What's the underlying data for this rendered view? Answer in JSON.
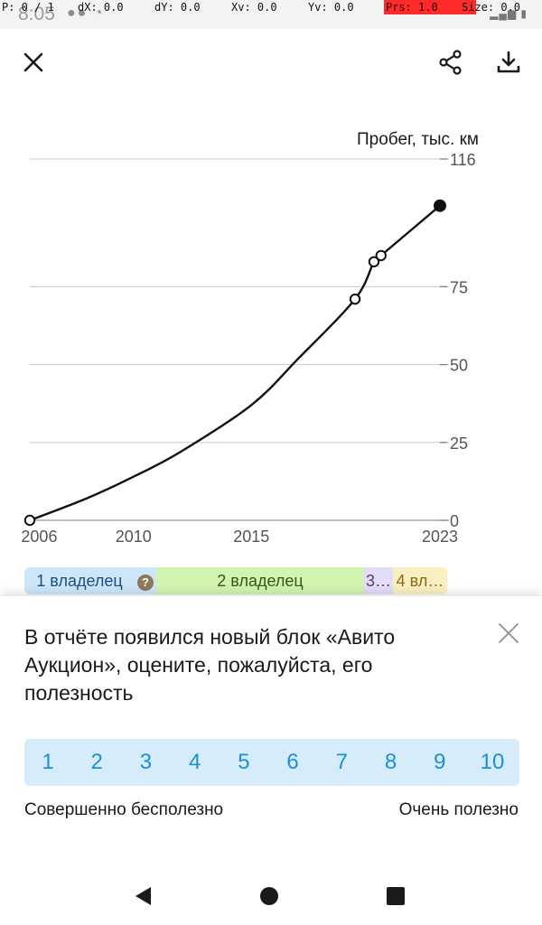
{
  "status": {
    "time": "8:05"
  },
  "debug": {
    "p": "P: 0 / 1",
    "dx": "dX: 0.0",
    "dy": "dY: 0.0",
    "xv": "Xv: 0.0",
    "yv": "Yv: 0.0",
    "prs": "Prs: 1.0",
    "size": "Size: 0.0"
  },
  "toolbar": {
    "close_icon": "close-icon",
    "share_icon": "share-icon",
    "download_icon": "download-icon"
  },
  "chart_data": {
    "type": "line",
    "title": "",
    "ylabel": "Пробег, тыс. км",
    "xlabel": "",
    "xlim": [
      2005.6,
      2023.0
    ],
    "ylim": [
      0,
      116
    ],
    "x_ticks": [
      "2006",
      "2010",
      "2015",
      "2023"
    ],
    "x_tick_values": [
      2006,
      2010,
      2015,
      2023
    ],
    "y_ticks": [
      0,
      25,
      50,
      75,
      116
    ],
    "grid": true,
    "series": [
      {
        "values": [
          {
            "x": 2005.6,
            "y": 0
          },
          {
            "x": 2008.0,
            "y": 7
          },
          {
            "x": 2010.0,
            "y": 14
          },
          {
            "x": 2012.0,
            "y": 22
          },
          {
            "x": 2015.0,
            "y": 37
          },
          {
            "x": 2017.0,
            "y": 52
          },
          {
            "x": 2019.4,
            "y": 71
          },
          {
            "x": 2020.2,
            "y": 83
          },
          {
            "x": 2020.5,
            "y": 85
          },
          {
            "x": 2023.0,
            "y": 101
          }
        ],
        "markers": [
          {
            "x": 2005.6,
            "y": 0,
            "filled": false
          },
          {
            "x": 2019.4,
            "y": 71,
            "filled": false
          },
          {
            "x": 2020.2,
            "y": 83,
            "filled": false
          },
          {
            "x": 2020.5,
            "y": 85,
            "filled": false
          },
          {
            "x": 2023.0,
            "y": 101,
            "filled": true
          }
        ]
      }
    ]
  },
  "owners": {
    "seg1": "1 владелец",
    "unknown": "?",
    "seg2": "2 владелец",
    "seg3": "3…",
    "seg4": "4 вл…"
  },
  "feedback": {
    "message": "В отчёте появился новый блок «Авито Аукцион», оцените, пожалуйста, его полезность",
    "ratings": [
      "1",
      "2",
      "3",
      "4",
      "5",
      "6",
      "7",
      "8",
      "9",
      "10"
    ],
    "label_min": "Совершенно бесполезно",
    "label_max": "Очень полезно"
  }
}
